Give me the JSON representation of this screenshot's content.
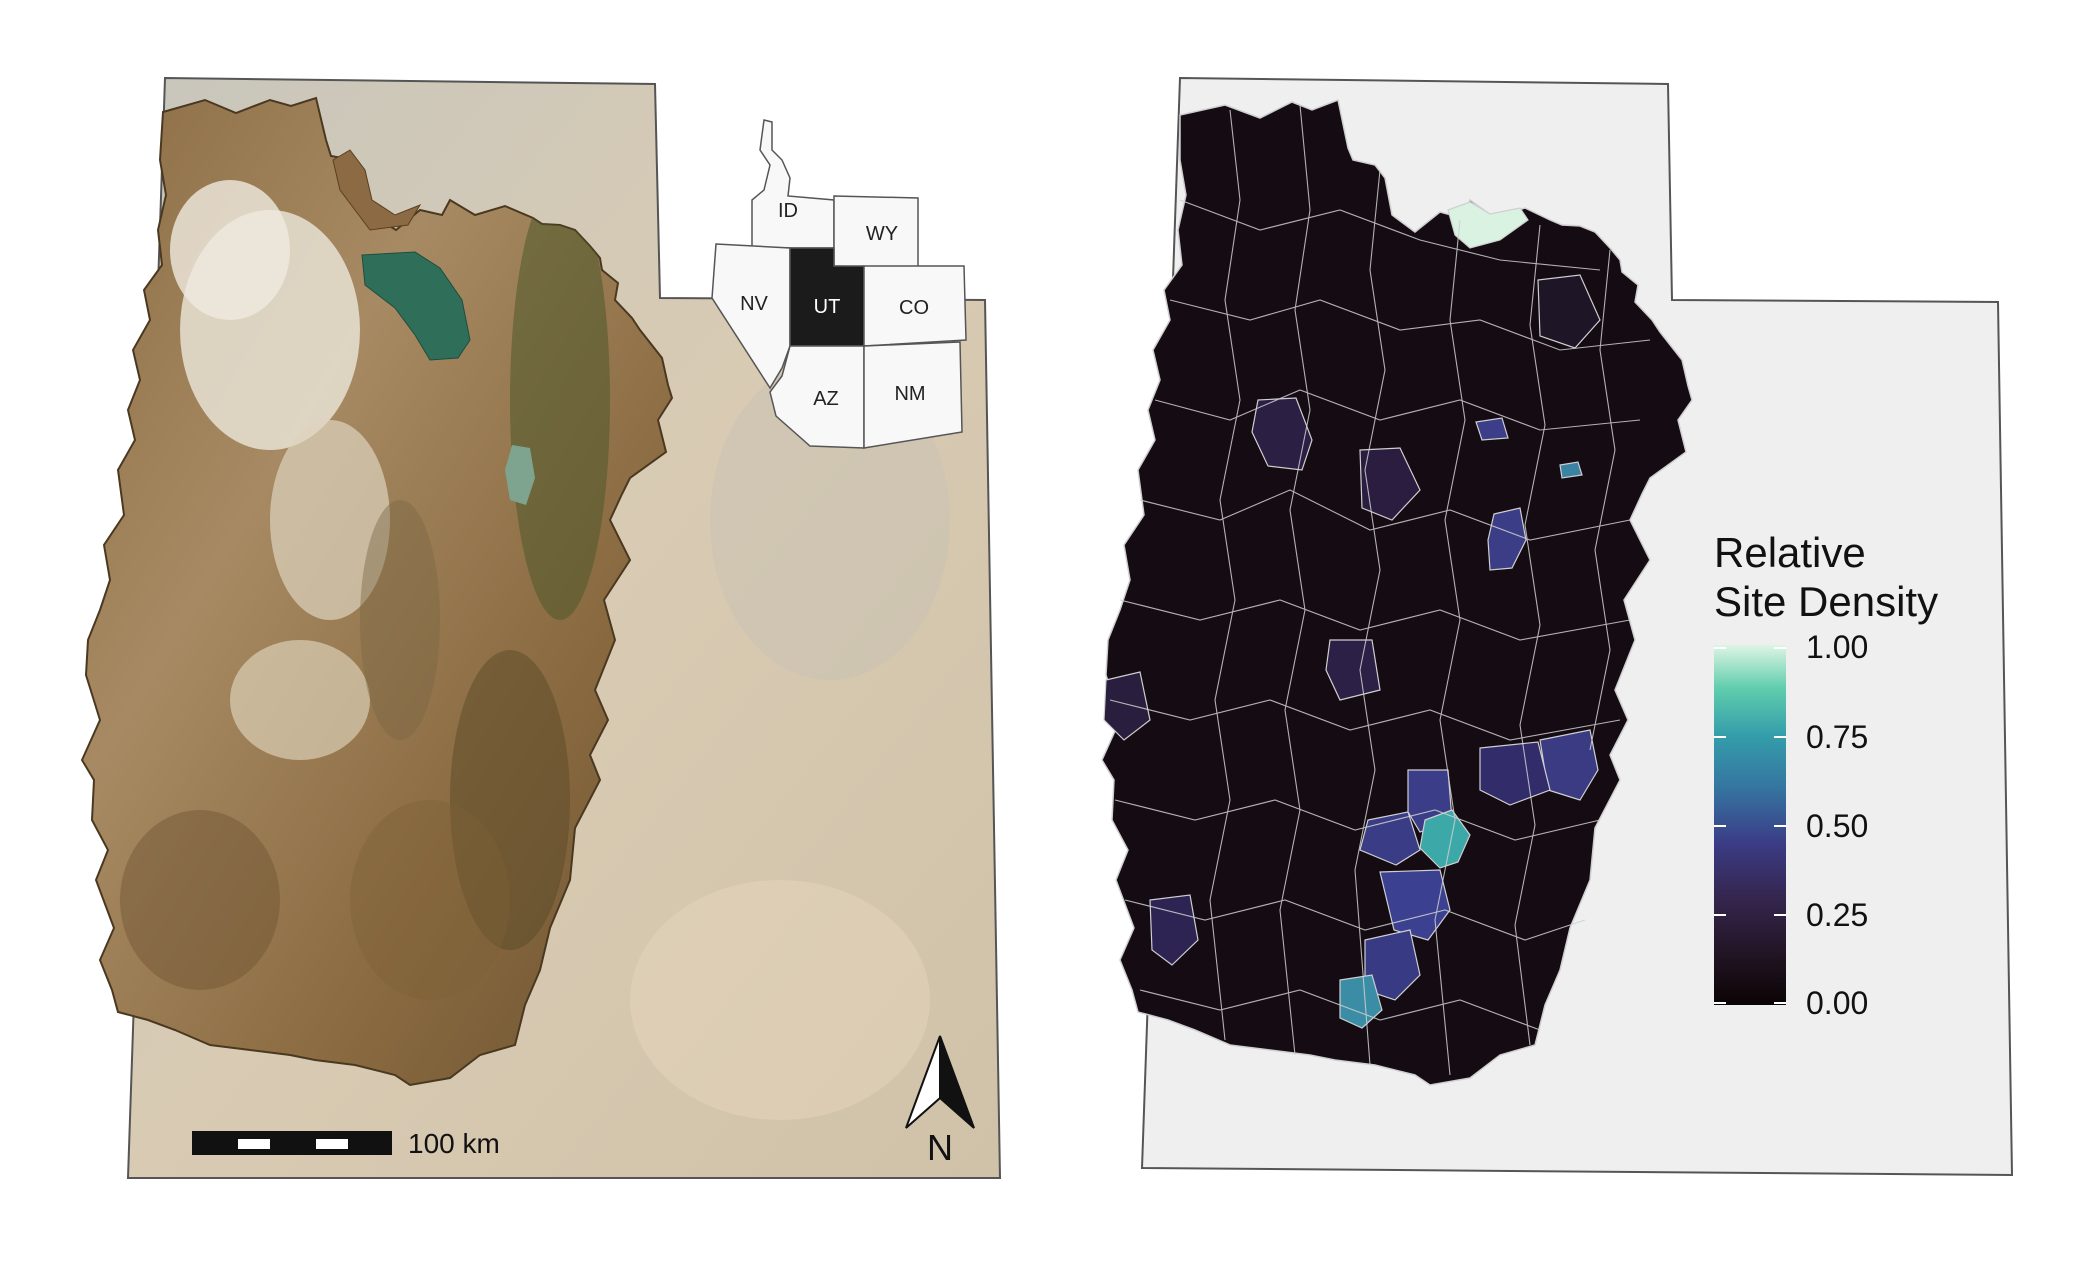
{
  "inset": {
    "states": [
      {
        "abbr": "ID",
        "highlight": false
      },
      {
        "abbr": "WY",
        "highlight": false
      },
      {
        "abbr": "NV",
        "highlight": false
      },
      {
        "abbr": "UT",
        "highlight": true
      },
      {
        "abbr": "CO",
        "highlight": false
      },
      {
        "abbr": "AZ",
        "highlight": false
      },
      {
        "abbr": "NM",
        "highlight": false
      }
    ]
  },
  "scalebar": {
    "label": "100 km"
  },
  "north_arrow": {
    "label": "N"
  },
  "legend": {
    "title_line1": "Relative",
    "title_line2": "Site Density",
    "ticks": [
      "1.00",
      "0.75",
      "0.50",
      "0.25",
      "0.00"
    ],
    "palette": "mako"
  },
  "colors": {
    "state_fill_right": "#efefef",
    "boundary": "#555555",
    "basin_line": "#d9d9d9",
    "inset_highlight": "#1b1b1b"
  }
}
